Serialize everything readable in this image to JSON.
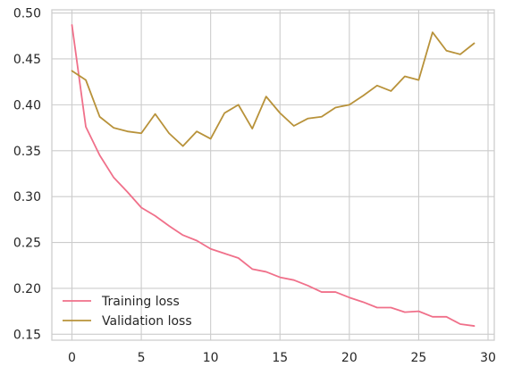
{
  "chart_data": {
    "type": "line",
    "title": "",
    "xlabel": "",
    "ylabel": "",
    "xlim": [
      -1.45,
      30.45
    ],
    "ylim": [
      0.1435,
      0.5035
    ],
    "xticks": [
      0,
      5,
      10,
      15,
      20,
      25,
      30
    ],
    "yticks": [
      0.15,
      0.2,
      0.25,
      0.3,
      0.35,
      0.4,
      0.45,
      0.5
    ],
    "grid": true,
    "legend_position": "lower-left",
    "x": [
      0,
      1,
      2,
      3,
      4,
      5,
      6,
      7,
      8,
      9,
      10,
      11,
      12,
      13,
      14,
      15,
      16,
      17,
      18,
      19,
      20,
      21,
      22,
      23,
      24,
      25,
      26,
      27,
      28,
      29
    ],
    "series": [
      {
        "name": "Training loss",
        "color": "#f0708a",
        "values": [
          0.487,
          0.376,
          0.345,
          0.321,
          0.305,
          0.288,
          0.279,
          0.268,
          0.258,
          0.252,
          0.243,
          0.238,
          0.233,
          0.221,
          0.218,
          0.212,
          0.209,
          0.203,
          0.196,
          0.196,
          0.19,
          0.185,
          0.179,
          0.179,
          0.174,
          0.175,
          0.169,
          0.169,
          0.161,
          0.159
        ]
      },
      {
        "name": "Validation loss",
        "color": "#b8923a",
        "values": [
          0.437,
          0.427,
          0.387,
          0.375,
          0.371,
          0.369,
          0.39,
          0.369,
          0.355,
          0.371,
          0.363,
          0.391,
          0.4,
          0.374,
          0.409,
          0.391,
          0.377,
          0.385,
          0.387,
          0.397,
          0.4,
          0.41,
          0.421,
          0.415,
          0.431,
          0.427,
          0.479,
          0.459,
          0.455,
          0.467
        ]
      }
    ]
  }
}
